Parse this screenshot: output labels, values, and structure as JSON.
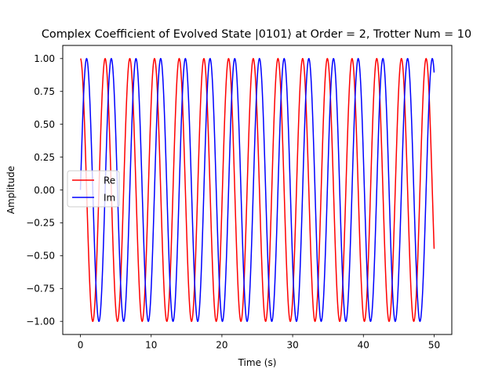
{
  "chart_data": {
    "type": "line",
    "title": "Complex Coefficient of Evolved State |0101⟩ at Order = 2, Trotter Num = 10",
    "xlabel": "Time (s)",
    "ylabel": "Amplitude",
    "xlim": [
      -2.5,
      52.5
    ],
    "ylim": [
      -1.1,
      1.1
    ],
    "x_ticks": [
      0,
      10,
      20,
      30,
      40,
      50
    ],
    "x_tick_labels": [
      "0",
      "10",
      "20",
      "30",
      "40",
      "50"
    ],
    "y_ticks": [
      -1.0,
      -0.75,
      -0.5,
      -0.25,
      0.0,
      0.25,
      0.5,
      0.75,
      1.0
    ],
    "y_tick_labels": [
      "−1.00",
      "−0.75",
      "−0.50",
      "−0.25",
      "0.00",
      "0.25",
      "0.50",
      "0.75",
      "1.00"
    ],
    "grid": false,
    "legend_position": "center-left",
    "x_range": [
      0,
      50
    ],
    "omega": 1.8,
    "series": [
      {
        "name": "Re",
        "function": "cos",
        "amplitude": 1.0,
        "color": "#ff0000"
      },
      {
        "name": "Im",
        "function": "sin",
        "amplitude": 1.0,
        "color": "#0000ff"
      }
    ]
  }
}
